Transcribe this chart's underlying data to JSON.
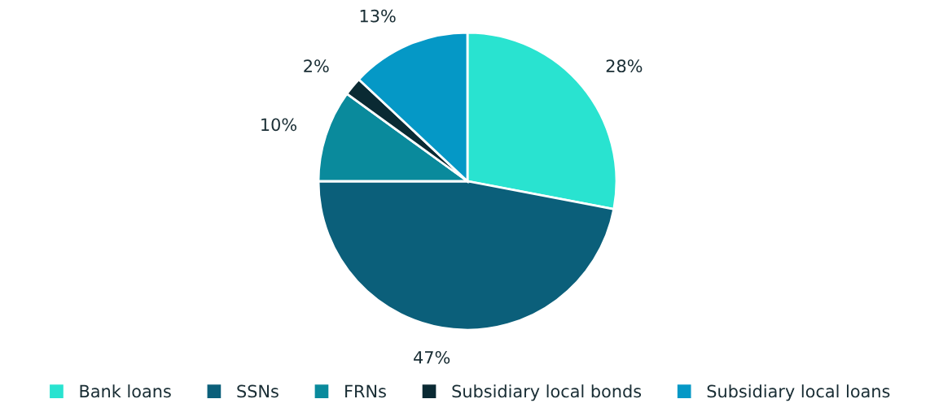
{
  "chart_data": {
    "type": "pie",
    "categories": [
      "Bank loans",
      "SSNs",
      "FRNs",
      "Subsidiary local bonds",
      "Subsidiary local loans"
    ],
    "values": [
      28,
      47,
      10,
      2,
      13
    ],
    "value_labels": [
      "28%",
      "47%",
      "10%",
      "2%",
      "13%"
    ],
    "colors": [
      "#29e3d0",
      "#0b5f7a",
      "#0a8a9c",
      "#0a2a33",
      "#0598c6"
    ],
    "legend": "bottom"
  }
}
